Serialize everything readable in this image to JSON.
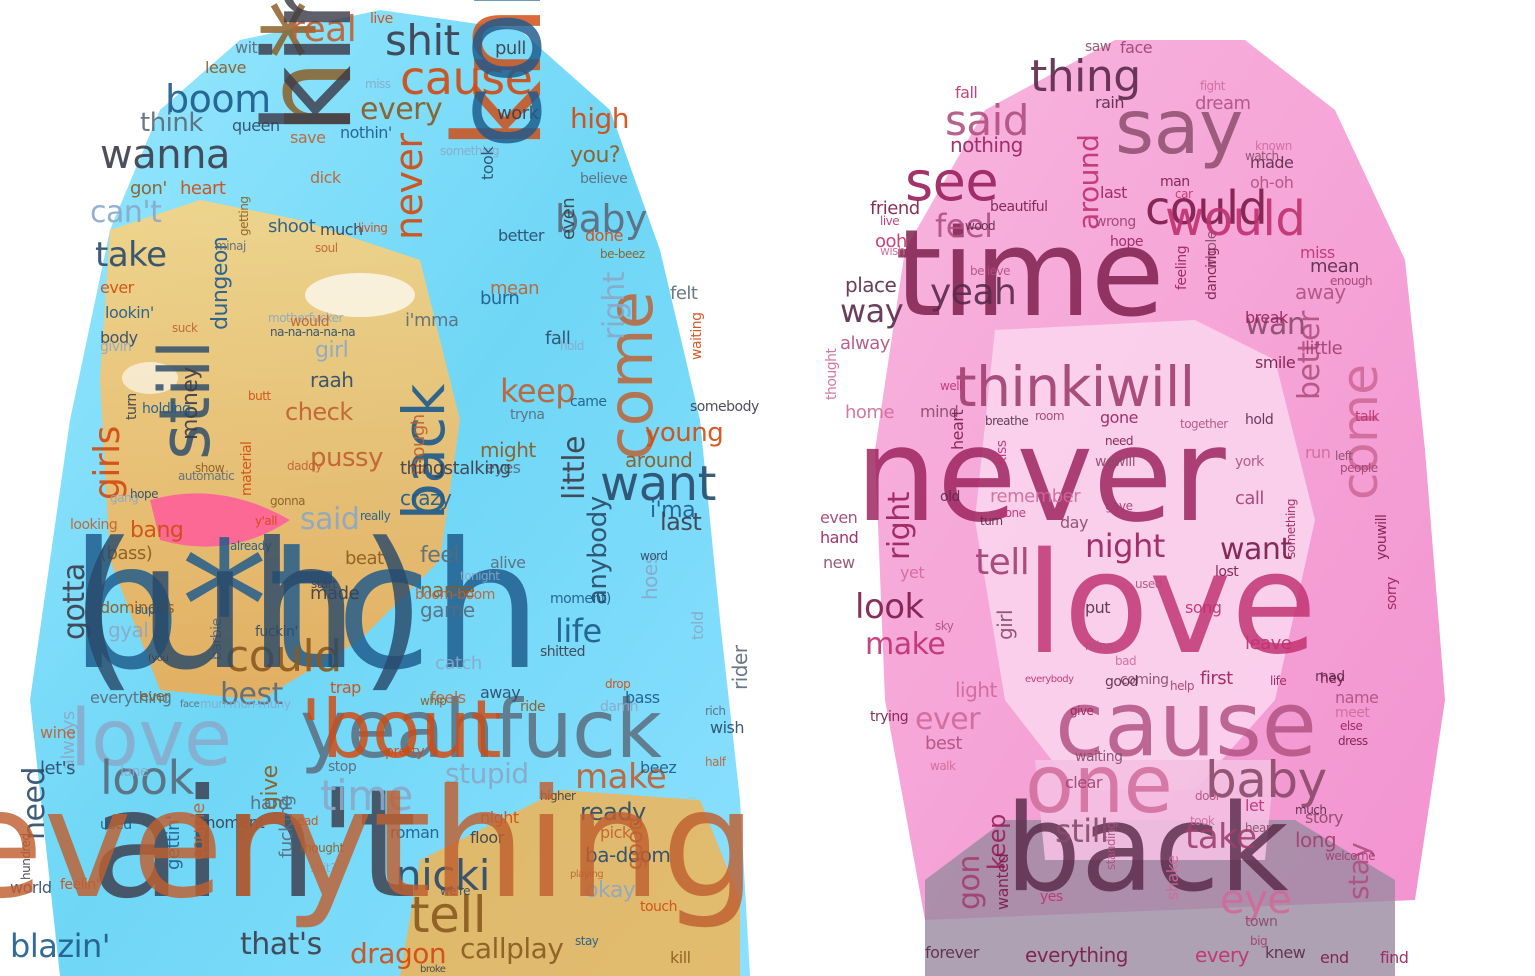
{
  "panels": [
    {
      "name": "left",
      "palette": [
        "#1d5a8c",
        "#3c3c4a",
        "#d24a10",
        "#8a5a20",
        "#5a6a7a",
        "#8aa8c8",
        "#2a4a6a",
        "#c06030"
      ],
      "words": [
        "b*tch",
        "ain't",
        "know",
        "n*gga",
        "yeahfuck",
        "love",
        "still",
        "come",
        "back",
        "shit",
        "cause",
        "could",
        "look",
        "time",
        "want",
        "real",
        "boom",
        "wanna",
        "girls",
        "tell",
        "baby",
        "said",
        "nicki",
        "make",
        "life",
        "little",
        "never",
        "every",
        "think",
        "can't",
        "take",
        "keep",
        "blazin'",
        "that's",
        "dragon",
        "callplay",
        "best",
        "stupid",
        "need",
        "pussy",
        "dungeon",
        "money",
        "young",
        "around",
        "feel",
        "girl",
        "raah",
        "check",
        "crazy",
        "gotta",
        "bang",
        "name",
        "game",
        "hoes",
        "ready",
        "good",
        "i'ma",
        "last",
        "high",
        "you?",
        "felt",
        "right",
        "fall",
        "mean",
        "burn",
        "even",
        "done",
        "might",
        "eyes",
        "catch",
        "away",
        "feels",
        "bass",
        "made",
        "trap",
        "give",
        "hard",
        "okay",
        "ba-doom",
        "pick",
        "roman",
        "floor",
        "night",
        "dominoes",
        "everything",
        "always",
        "world",
        "couple",
        "gettin'",
        "pull",
        "live",
        "leave",
        "wit",
        "miss",
        "queen",
        "save",
        "nothin'",
        "work",
        "heart",
        "gon'",
        "believe",
        "something",
        "better",
        "soul",
        "shoot",
        "much",
        "living",
        "getting",
        "minaj",
        "givin'",
        "body",
        "suck",
        "holding",
        "turn",
        "butt",
        "show",
        "automatic",
        "gang",
        "hope",
        "looking",
        "super",
        "(you",
        "ever",
        "(bass)",
        "barbie",
        "gyal",
        "fuckin'",
        "daddy",
        "already",
        "start",
        "y'all",
        "beat",
        "alive",
        "tonight",
        "word",
        "boom-boom",
        "moment)",
        "shitted",
        "drop",
        "whip",
        "rich",
        "damn",
        "wish",
        "half",
        "beez",
        "higher",
        "pretty",
        "ride",
        "stop",
        "lane",
        "let's",
        "wine",
        "used",
        "moment",
        "head",
        "thought",
        "fucking",
        "shit?",
        "we're",
        "playing",
        "stay",
        "broke",
        "touch",
        "kill",
        "rider",
        "told",
        "anybody",
        "though",
        "really",
        "thingstalking",
        "material",
        "gonna",
        "i'mma",
        "motherfucker",
        "na-na-na-na-na",
        "would",
        "came",
        "somebody",
        "waiting",
        "be-beez",
        "tryna",
        "hold",
        "took",
        "dick",
        "lookin'",
        "hundred",
        "feelin'",
        "ever",
        "face",
        "mun-mun-muny",
        "(uh)",
        "everything",
        "coming",
        "king",
        "'bout"
      ]
    },
    {
      "name": "right",
      "palette": [
        "#9a1f5a",
        "#7a1a48",
        "#c03070",
        "#5a2a4a",
        "#b05080",
        "#d06a9a",
        "#8a4a6a",
        "#a04070"
      ],
      "words": [
        "never",
        "time",
        "love",
        "back",
        "cause",
        "one",
        "say",
        "thinkiwill",
        "see",
        "could",
        "would",
        "thing",
        "said",
        "come",
        "baby",
        "tell",
        "night",
        "want",
        "around",
        "yeah",
        "feel",
        "eye",
        "still",
        "take",
        "right",
        "look",
        "make",
        "way",
        "better",
        "ever",
        "girl",
        "gon",
        "keep",
        "everything",
        "every",
        "knew",
        "stay",
        "light",
        "wan",
        "little",
        "break",
        "smile",
        "miss",
        "mean",
        "away",
        "remember",
        "day",
        "call",
        "first",
        "hey",
        "leave",
        "mad",
        "name",
        "meet",
        "story",
        "long",
        "nothing",
        "friend",
        "ooh",
        "place",
        "alway",
        "home",
        "mind",
        "room",
        "gone",
        "need",
        "talk",
        "hold",
        "york",
        "run",
        "left",
        "people",
        "sorry",
        "lost",
        "song",
        "put",
        "mine",
        "yet",
        "new",
        "even",
        "hand",
        "heart",
        "kiss",
        "turn",
        "used",
        "bad",
        "coming",
        "help",
        "life",
        "trying",
        "everybody",
        "good",
        "best",
        "walk",
        "waiting",
        "clear",
        "give",
        "wanted",
        "yes",
        "forever",
        "standing",
        "shake",
        "town",
        "big",
        "find",
        "end",
        "let",
        "much",
        "door",
        "took",
        "hear",
        "welcome",
        "else",
        "dress",
        "fall",
        "rain",
        "dream",
        "fight",
        "saw",
        "face",
        "last",
        "man",
        "car",
        "made",
        "oh-oh",
        "known",
        "watch",
        "wrong",
        "hope",
        "beautiful",
        "live",
        "wood",
        "believe",
        "wish",
        "whole",
        "enough",
        "feeling",
        "dancing",
        "well",
        "breathe",
        "together",
        "thought",
        "wewill",
        "gave",
        "something",
        "youwill",
        "alone",
        "old",
        "sky"
      ]
    }
  ]
}
